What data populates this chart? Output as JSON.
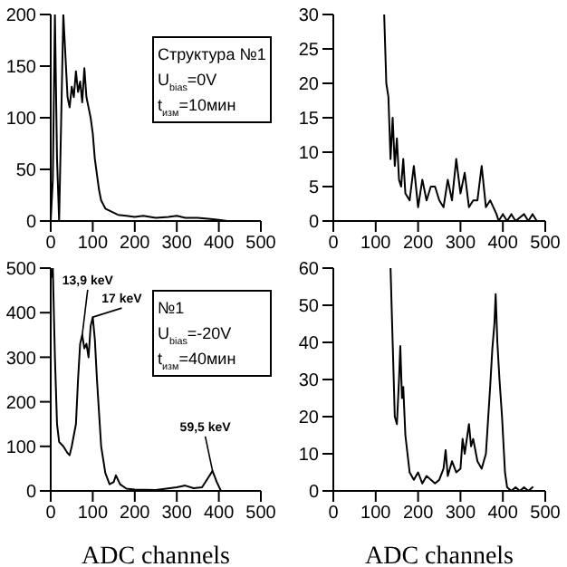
{
  "chart_data": [
    {
      "type": "line",
      "xlim": [
        0,
        500
      ],
      "xticks": [
        0,
        100,
        200,
        300,
        400,
        500
      ],
      "ylim": [
        0,
        200
      ],
      "yticks": [
        0,
        50,
        100,
        150,
        200
      ],
      "grid": false,
      "marker": "none",
      "annotations": [
        "Структура №1",
        "U$_{bias}$=0V",
        "t$_{изм}$=10мин"
      ],
      "series": [
        {
          "color": "#000000",
          "x": [
            0,
            5,
            10,
            15,
            20,
            25,
            30,
            35,
            40,
            45,
            50,
            55,
            60,
            65,
            70,
            75,
            80,
            85,
            90,
            95,
            100,
            105,
            110,
            115,
            120,
            130,
            140,
            150,
            160,
            180,
            200,
            220,
            250,
            280,
            300,
            320,
            350,
            380,
            400,
            420,
            450
          ],
          "values": [
            0,
            40,
            200,
            60,
            0,
            100,
            200,
            160,
            120,
            110,
            130,
            120,
            145,
            125,
            135,
            115,
            148,
            120,
            110,
            100,
            85,
            60,
            45,
            30,
            20,
            12,
            10,
            8,
            6,
            5,
            4,
            5,
            3,
            4,
            5,
            3,
            3,
            2,
            1,
            0,
            0
          ]
        }
      ]
    },
    {
      "type": "line",
      "xlim": [
        0,
        500
      ],
      "xticks": [
        0,
        100,
        200,
        300,
        400,
        500
      ],
      "ylim": [
        0,
        30
      ],
      "yticks": [
        0,
        5,
        10,
        15,
        20,
        25,
        30
      ],
      "grid": false,
      "marker": "none",
      "series": [
        {
          "color": "#000000",
          "x": [
            120,
            125,
            130,
            135,
            140,
            145,
            150,
            155,
            160,
            165,
            170,
            180,
            190,
            200,
            210,
            220,
            230,
            240,
            250,
            260,
            270,
            280,
            290,
            300,
            310,
            320,
            330,
            340,
            350,
            360,
            370,
            385,
            390,
            400,
            410,
            420,
            430,
            450,
            460,
            470,
            480
          ],
          "values": [
            30,
            20,
            18,
            9,
            15,
            8,
            12,
            6,
            5,
            9,
            4,
            3,
            8,
            2,
            6,
            3,
            5,
            5,
            3,
            2,
            6,
            3,
            9,
            4,
            7,
            2,
            3,
            3,
            8,
            2,
            3,
            1,
            0,
            1,
            0,
            1,
            0,
            1,
            0,
            1,
            0
          ]
        }
      ]
    },
    {
      "type": "line",
      "xlim": [
        0,
        500
      ],
      "xticks": [
        0,
        100,
        200,
        300,
        400,
        500
      ],
      "ylim": [
        0,
        500
      ],
      "yticks": [
        0,
        100,
        200,
        300,
        400,
        500
      ],
      "grid": false,
      "marker": "none",
      "xlabel": "ADC channels",
      "annotations": [
        "№1",
        "U$_{bias}$=-20V",
        "t$_{изм}$=40мин",
        {
          "text": "13,9 keV",
          "x": 75,
          "y": 350
        },
        {
          "text": "17 keV",
          "x": 100,
          "y": 390
        },
        {
          "text": "59,5 keV",
          "x": 385,
          "y": 45
        }
      ],
      "series": [
        {
          "color": "#000000",
          "x": [
            2,
            5,
            10,
            15,
            20,
            30,
            40,
            45,
            50,
            60,
            65,
            70,
            75,
            80,
            85,
            90,
            95,
            100,
            105,
            110,
            120,
            130,
            140,
            150,
            155,
            165,
            180,
            200,
            250,
            300,
            320,
            340,
            360,
            375,
            385,
            395,
            405
          ],
          "values": [
            480,
            500,
            300,
            150,
            110,
            100,
            85,
            80,
            100,
            150,
            250,
            330,
            350,
            320,
            330,
            300,
            370,
            390,
            340,
            250,
            100,
            40,
            15,
            20,
            35,
            15,
            5,
            3,
            2,
            8,
            12,
            6,
            8,
            30,
            45,
            20,
            0
          ]
        }
      ]
    },
    {
      "type": "line",
      "xlim": [
        0,
        500
      ],
      "xticks": [
        0,
        100,
        200,
        300,
        400,
        500
      ],
      "ylim": [
        0,
        60
      ],
      "yticks": [
        0,
        10,
        20,
        30,
        40,
        50,
        60
      ],
      "grid": false,
      "marker": "none",
      "xlabel": "ADC channels",
      "series": [
        {
          "color": "#000000",
          "x": [
            135,
            140,
            145,
            150,
            155,
            158,
            162,
            165,
            170,
            180,
            190,
            200,
            210,
            220,
            240,
            250,
            260,
            265,
            270,
            280,
            290,
            300,
            305,
            310,
            320,
            325,
            330,
            340,
            350,
            360,
            370,
            375,
            380,
            383,
            387,
            392,
            398,
            405,
            410,
            420,
            430,
            440,
            450,
            460,
            470
          ],
          "values": [
            60,
            40,
            20,
            18,
            30,
            39,
            25,
            28,
            15,
            5,
            3,
            5,
            2,
            4,
            2,
            3,
            6,
            11,
            4,
            8,
            5,
            6,
            14,
            10,
            18,
            12,
            14,
            8,
            6,
            10,
            28,
            38,
            45,
            53,
            40,
            30,
            20,
            5,
            1,
            0,
            1,
            0,
            1,
            0,
            1
          ]
        }
      ]
    }
  ]
}
